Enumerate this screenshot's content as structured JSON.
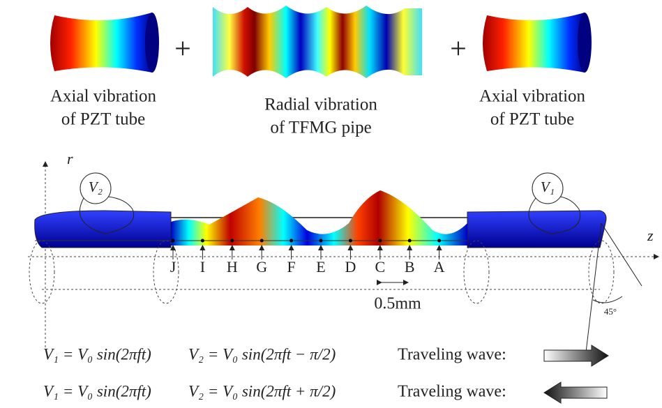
{
  "top_panels": [
    {
      "caption": [
        "Axial vibration",
        "of PZT tube"
      ]
    },
    {
      "caption": [
        "Radial vibration",
        "of TFMG pipe"
      ]
    },
    {
      "caption": [
        "Axial vibration",
        "of PZT tube"
      ]
    }
  ],
  "operators": [
    "+",
    "+"
  ],
  "diagram": {
    "axis_r": "r",
    "axis_z": "z",
    "electrodes": [
      "V₂",
      "V₁"
    ],
    "points": [
      "J",
      "I",
      "H",
      "G",
      "F",
      "E",
      "D",
      "C",
      "B",
      "A"
    ],
    "spacing": "0.5mm",
    "angle": "45°"
  },
  "equations": [
    {
      "v1": "V₁ = V₀ sin(2πft)",
      "v2": "V₂ = V₀ sin(2πft − π/2)",
      "wave_label": "Traveling wave:"
    },
    {
      "v1": "V₁ = V₀ sin(2πft)",
      "v2": "V₂ = V₀ sin(2πft + π/2)",
      "wave_label": "Traveling wave:"
    }
  ]
}
